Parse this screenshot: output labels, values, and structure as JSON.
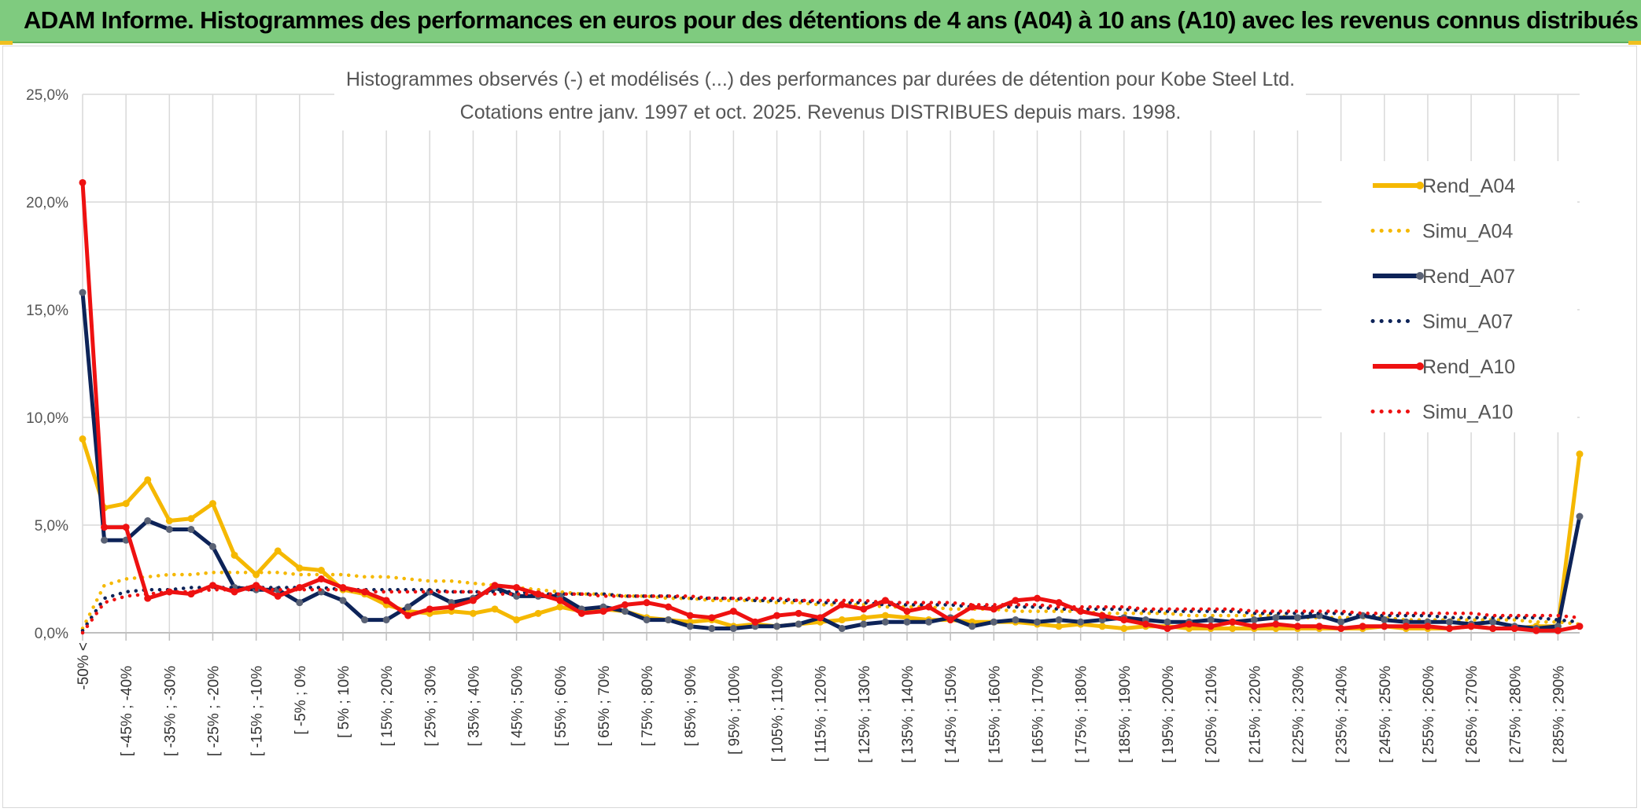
{
  "header": {
    "title": "ADAM Informe. Histogrammes des performances en euros pour des détentions de 4 ans (A04) à 10 ans (A10) avec les revenus connus distribués"
  },
  "colors": {
    "banner": "#7fcb7f",
    "A04": "#f5b800",
    "A07": "#0d2358",
    "A10": "#ee1111",
    "grid": "#d9d9d9"
  },
  "chart_data": {
    "type": "line",
    "title_line1": "Histogrammes observés (-) et modélisés (...) des performances par durées de détention pour Kobe Steel Ltd.",
    "title_line2": "Cotations entre janv. 1997 et oct. 2025. Revenus DISTRIBUES depuis mars. 1998.",
    "y_ticks": [
      "0,0%",
      "5,0%",
      "10,0%",
      "15,0%",
      "20,0%",
      "25,0%"
    ],
    "ylim": [
      0,
      25
    ],
    "grid": true,
    "legend_position": "top-right",
    "x_labels": [
      "-50% <",
      "[ -45% ; -40%",
      "[ -35% ; -30%",
      "[ -25% ; -20%",
      "[ -15% ; -10%",
      "[ -5% ; 0%",
      "[ 5% ; 10%",
      "[ 15% ; 20%",
      "[ 25% ; 30%",
      "[ 35% ; 40%",
      "[ 45% ; 50%",
      "[ 55% ; 60%",
      "[ 65% ; 70%",
      "[ 75% ; 80%",
      "[ 85% ; 90%",
      "[ 95% ; 100%",
      "[ 105% ; 110%",
      "[ 115% ; 120%",
      "[ 125% ; 130%",
      "[ 135% ; 140%",
      "[ 145% ; 150%",
      "[ 155% ; 160%",
      "[ 165% ; 170%",
      "[ 175% ; 180%",
      "[ 185% ; 190%",
      "[ 195% ; 200%",
      "[ 205% ; 210%",
      "[ 215% ; 220%",
      "[ 225% ; 230%",
      "[ 235% ; 240%",
      "[ 245% ; 250%",
      "[ 255% ; 260%",
      "[ 265% ; 270%",
      "[ 275% ; 280%",
      "[ 285% ; 290%"
    ],
    "series": [
      {
        "name": "Rend_A04",
        "style": "solid",
        "color": "#f5b800",
        "values": [
          9.0,
          5.8,
          6.0,
          7.1,
          5.2,
          5.3,
          6.0,
          3.6,
          2.7,
          3.8,
          3.0,
          2.9,
          2.0,
          1.8,
          1.3,
          1.0,
          0.9,
          1.0,
          0.9,
          1.1,
          0.6,
          0.9,
          1.2,
          1.0,
          1.1,
          1.0,
          0.7,
          0.6,
          0.5,
          0.6,
          0.3,
          0.4,
          0.3,
          0.4,
          0.5,
          0.6,
          0.7,
          0.8,
          0.7,
          0.6,
          0.6,
          0.5,
          0.5,
          0.5,
          0.4,
          0.3,
          0.4,
          0.3,
          0.2,
          0.3,
          0.3,
          0.2,
          0.2,
          0.2,
          0.2,
          0.2,
          0.2,
          0.2,
          0.2,
          0.2,
          0.3,
          0.2,
          0.2,
          0.2,
          0.3,
          0.2,
          0.2,
          0.3,
          0.3,
          8.3
        ]
      },
      {
        "name": "Simu_A04",
        "style": "dotted",
        "color": "#f5b800",
        "values": [
          0.2,
          2.2,
          2.5,
          2.6,
          2.7,
          2.7,
          2.8,
          2.8,
          2.8,
          2.8,
          2.7,
          2.7,
          2.7,
          2.6,
          2.6,
          2.5,
          2.4,
          2.4,
          2.3,
          2.2,
          2.1,
          2.0,
          1.9,
          1.8,
          1.8,
          1.7,
          1.7,
          1.6,
          1.6,
          1.5,
          1.5,
          1.5,
          1.4,
          1.4,
          1.3,
          1.3,
          1.3,
          1.2,
          1.2,
          1.2,
          1.1,
          1.1,
          1.1,
          1.0,
          1.0,
          1.0,
          1.0,
          0.9,
          0.9,
          0.9,
          0.9,
          0.8,
          0.8,
          0.8,
          0.8,
          0.8,
          0.7,
          0.7,
          0.7,
          0.7,
          0.7,
          0.6,
          0.6,
          0.6,
          0.6,
          0.6,
          0.6,
          0.5,
          0.5,
          0.4
        ]
      },
      {
        "name": "Rend_A07",
        "style": "solid",
        "color": "#0d2358",
        "values": [
          15.8,
          4.3,
          4.3,
          5.2,
          4.8,
          4.8,
          4.0,
          2.1,
          2.0,
          2.0,
          1.4,
          1.9,
          1.5,
          0.6,
          0.6,
          1.2,
          1.9,
          1.4,
          1.6,
          2.1,
          1.7,
          1.7,
          1.7,
          1.1,
          1.2,
          1.0,
          0.6,
          0.6,
          0.3,
          0.2,
          0.2,
          0.3,
          0.3,
          0.4,
          0.7,
          0.2,
          0.4,
          0.5,
          0.5,
          0.5,
          0.7,
          0.3,
          0.5,
          0.6,
          0.5,
          0.6,
          0.5,
          0.6,
          0.7,
          0.6,
          0.5,
          0.5,
          0.6,
          0.5,
          0.6,
          0.7,
          0.7,
          0.8,
          0.5,
          0.8,
          0.6,
          0.5,
          0.5,
          0.5,
          0.4,
          0.5,
          0.3,
          0.2,
          0.3,
          5.4
        ]
      },
      {
        "name": "Simu_A07",
        "style": "dotted",
        "color": "#0d2358",
        "values": [
          0.1,
          1.6,
          1.9,
          2.0,
          2.0,
          2.1,
          2.1,
          2.1,
          2.1,
          2.1,
          2.1,
          2.1,
          2.0,
          2.0,
          2.0,
          2.0,
          2.0,
          1.9,
          1.9,
          1.9,
          1.9,
          1.8,
          1.8,
          1.8,
          1.8,
          1.7,
          1.7,
          1.7,
          1.6,
          1.6,
          1.6,
          1.5,
          1.5,
          1.5,
          1.4,
          1.4,
          1.4,
          1.3,
          1.3,
          1.3,
          1.3,
          1.2,
          1.2,
          1.2,
          1.2,
          1.1,
          1.1,
          1.1,
          1.1,
          1.0,
          1.0,
          1.0,
          1.0,
          1.0,
          0.9,
          0.9,
          0.9,
          0.9,
          0.9,
          0.8,
          0.8,
          0.8,
          0.8,
          0.7,
          0.7,
          0.7,
          0.7,
          0.7,
          0.6,
          0.5
        ]
      },
      {
        "name": "Rend_A10",
        "style": "solid",
        "color": "#ee1111",
        "values": [
          20.9,
          4.9,
          4.9,
          1.6,
          1.9,
          1.8,
          2.2,
          1.9,
          2.2,
          1.7,
          2.1,
          2.5,
          2.1,
          1.9,
          1.5,
          0.8,
          1.1,
          1.2,
          1.5,
          2.2,
          2.1,
          1.8,
          1.5,
          0.9,
          1.0,
          1.3,
          1.4,
          1.2,
          0.8,
          0.7,
          1.0,
          0.5,
          0.8,
          0.9,
          0.7,
          1.3,
          1.1,
          1.5,
          1.0,
          1.2,
          0.6,
          1.2,
          1.1,
          1.5,
          1.6,
          1.4,
          1.0,
          0.8,
          0.6,
          0.4,
          0.2,
          0.4,
          0.3,
          0.5,
          0.3,
          0.4,
          0.3,
          0.3,
          0.2,
          0.3,
          0.3,
          0.3,
          0.3,
          0.2,
          0.3,
          0.2,
          0.2,
          0.1,
          0.1,
          0.3
        ]
      },
      {
        "name": "Simu_A10",
        "style": "dotted",
        "color": "#ee1111",
        "values": [
          0.0,
          1.4,
          1.7,
          1.8,
          1.9,
          1.9,
          2.0,
          2.0,
          2.0,
          2.0,
          2.0,
          2.0,
          2.0,
          1.9,
          1.9,
          1.9,
          1.9,
          1.9,
          1.9,
          1.8,
          1.8,
          1.8,
          1.8,
          1.8,
          1.7,
          1.7,
          1.7,
          1.7,
          1.7,
          1.6,
          1.6,
          1.6,
          1.6,
          1.5,
          1.5,
          1.5,
          1.5,
          1.4,
          1.4,
          1.4,
          1.4,
          1.3,
          1.3,
          1.3,
          1.3,
          1.2,
          1.2,
          1.2,
          1.2,
          1.1,
          1.1,
          1.1,
          1.1,
          1.1,
          1.0,
          1.0,
          1.0,
          1.0,
          1.0,
          0.9,
          0.9,
          0.9,
          0.9,
          0.9,
          0.9,
          0.8,
          0.8,
          0.8,
          0.8,
          0.7
        ]
      }
    ]
  }
}
